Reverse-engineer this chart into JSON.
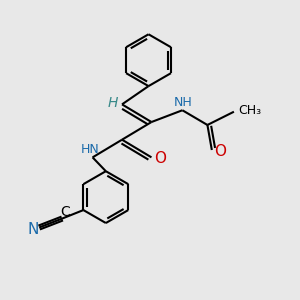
{
  "bg_color": "#e8e8e8",
  "bond_color": "#000000",
  "nitrogen_color": "#1a6aaa",
  "oxygen_color": "#cc0000",
  "teal_color": "#3a8a8a",
  "line_width": 1.5,
  "figsize": [
    3.0,
    3.0
  ],
  "dpi": 100,
  "xlim": [
    0,
    10
  ],
  "ylim": [
    0,
    10
  ]
}
